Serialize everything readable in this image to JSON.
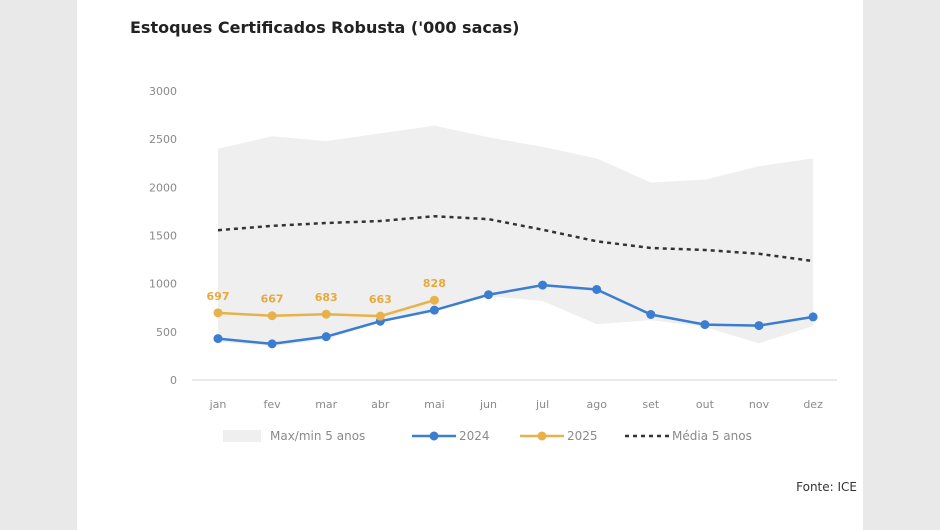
{
  "chart_data": {
    "type": "line",
    "title": "Estoques Certificados Robusta ('000 sacas)",
    "source": "Fonte: ICE",
    "categories": [
      "jan",
      "fev",
      "mar",
      "abr",
      "mai",
      "jun",
      "jul",
      "ago",
      "set",
      "out",
      "nov",
      "dez"
    ],
    "ylim": [
      0,
      3000
    ],
    "yticks": [
      0,
      500,
      1000,
      1500,
      2000,
      2500,
      3000
    ],
    "grid": false,
    "legend_position": "bottom",
    "band": {
      "name": "Max/min 5 anos",
      "max": [
        2400,
        2530,
        2480,
        2560,
        2640,
        2520,
        2420,
        2300,
        2050,
        2080,
        2220,
        2300
      ],
      "min": [
        400,
        350,
        420,
        600,
        720,
        870,
        820,
        580,
        620,
        550,
        380,
        560
      ],
      "color": "#efefef"
    },
    "series": [
      {
        "name": "2024",
        "color": "#3a7dd1",
        "style": "solid",
        "markers": true,
        "values": [
          430,
          375,
          450,
          610,
          725,
          885,
          985,
          940,
          680,
          575,
          565,
          655
        ]
      },
      {
        "name": "2025",
        "color": "#e8b14a",
        "style": "solid",
        "markers": true,
        "values": [
          697,
          667,
          683,
          663,
          828,
          null,
          null,
          null,
          null,
          null,
          null,
          null
        ],
        "labels": [
          "697",
          "667",
          "683",
          "663",
          "828"
        ]
      },
      {
        "name": "Média 5 anos",
        "color": "#333333",
        "style": "dashed",
        "markers": false,
        "values": [
          1555,
          1600,
          1630,
          1650,
          1700,
          1670,
          1560,
          1440,
          1370,
          1350,
          1310,
          1235
        ]
      }
    ]
  }
}
